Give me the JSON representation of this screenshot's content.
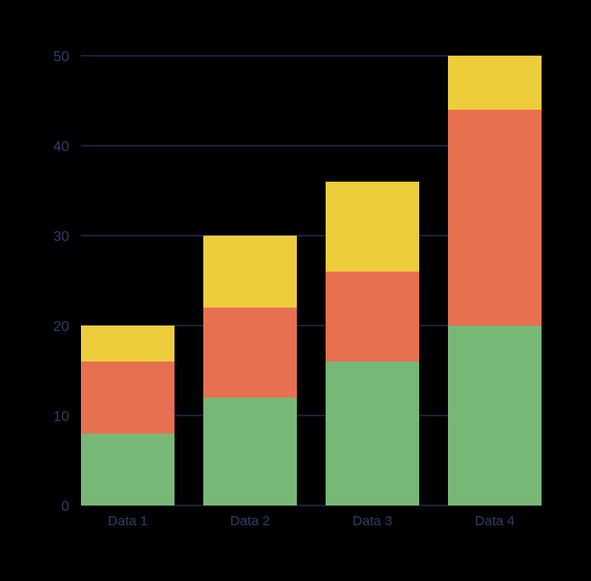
{
  "chart_data": {
    "type": "bar",
    "stacked": true,
    "categories": [
      "Data 1",
      "Data 2",
      "Data 3",
      "Data 4"
    ],
    "series": [
      {
        "values": [
          8,
          12,
          16,
          20
        ],
        "color": "#78B877"
      },
      {
        "values": [
          8,
          10,
          10,
          24
        ],
        "color": "#E77051"
      },
      {
        "values": [
          4,
          8,
          10,
          6
        ],
        "color": "#EDCD3B"
      }
    ],
    "ylim": [
      0,
      50
    ],
    "yticks": [
      0,
      10,
      20,
      30,
      40,
      50
    ],
    "title": "",
    "xlabel": "",
    "ylabel": "",
    "grid": true,
    "legend": "none",
    "colors": {
      "background": "#000000",
      "gridline": "#1E2A4A",
      "tick_label": "#2D3E6B"
    }
  }
}
